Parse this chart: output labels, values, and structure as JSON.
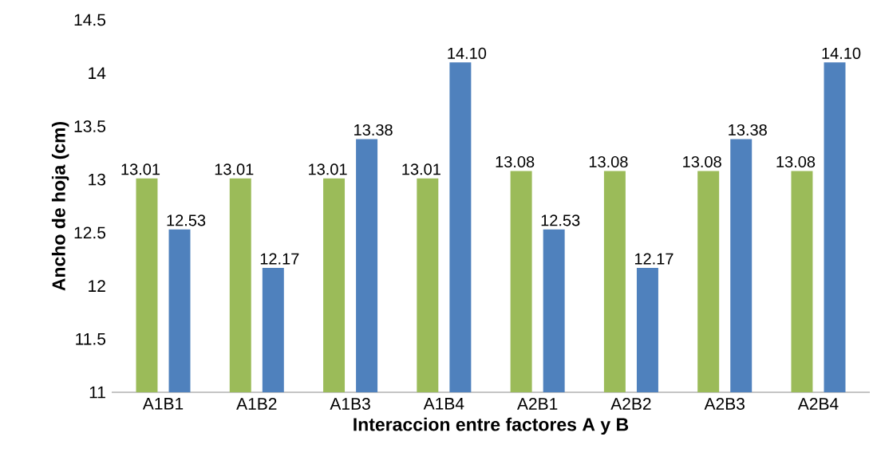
{
  "chart_data": {
    "type": "bar",
    "xlabel": "Interaccion entre factores A y B",
    "ylabel": "Ancho de hoja (cm)",
    "categories": [
      "A1B1",
      "A1B2",
      "A1B3",
      "A1B4",
      "A2B1",
      "A2B2",
      "A2B3",
      "A2B4"
    ],
    "series": [
      {
        "color": "#9bbb59",
        "values": [
          13.01,
          13.01,
          13.01,
          13.01,
          13.08,
          13.08,
          13.08,
          13.08
        ],
        "value_labels": [
          "13.01",
          "13.01",
          "13.01",
          "13.01",
          "13.08",
          "13.08",
          "13.08",
          "13.08"
        ]
      },
      {
        "color": "#4f81bd",
        "values": [
          12.53,
          12.17,
          13.38,
          14.1,
          12.53,
          12.17,
          13.38,
          14.1
        ],
        "value_labels": [
          "12.53",
          "12.17",
          "13.38",
          "14.10",
          "12.53",
          "12.17",
          "13.38",
          "14.10"
        ]
      }
    ],
    "ylim": [
      11,
      14.5
    ],
    "yticks": [
      11,
      11.5,
      12,
      12.5,
      13,
      13.5,
      14,
      14.5
    ],
    "grid": false
  }
}
